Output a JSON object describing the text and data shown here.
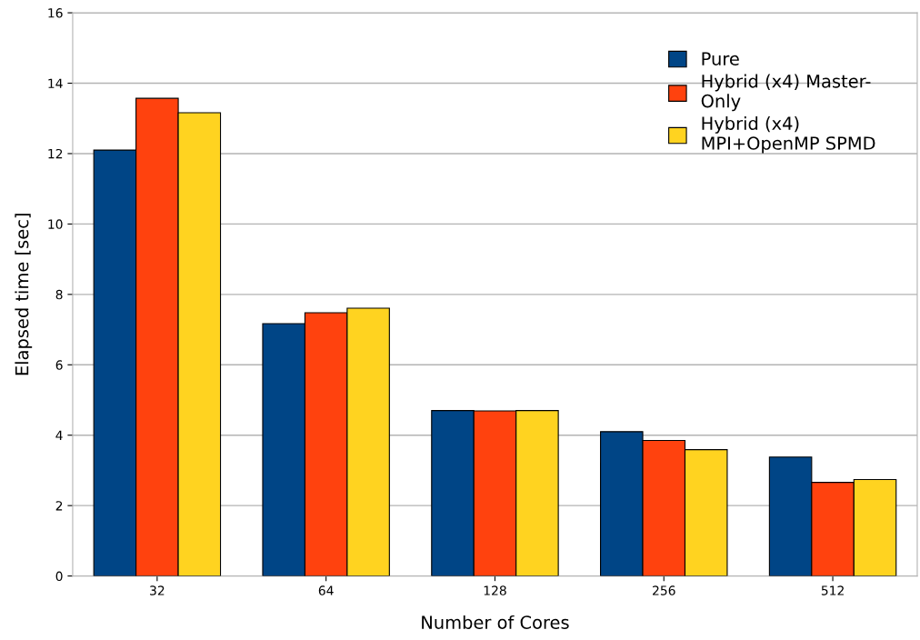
{
  "chart_data": {
    "type": "bar",
    "xlabel": "Number of Cores",
    "ylabel": "Elapsed time [sec]",
    "categories": [
      "32",
      "64",
      "128",
      "256",
      "512"
    ],
    "series": [
      {
        "name": "Pure",
        "color": "#004586",
        "values": [
          12.1,
          7.17,
          4.7,
          4.1,
          3.38
        ]
      },
      {
        "name": "Hybrid (x4) Master-\nOnly",
        "color": "#ff420e",
        "values": [
          13.57,
          7.48,
          4.69,
          3.85,
          2.66
        ]
      },
      {
        "name": "Hybrid (x4)\nMPI+OpenMP SPMD",
        "color": "#ffd320",
        "values": [
          13.16,
          7.61,
          4.7,
          3.59,
          2.74
        ]
      }
    ],
    "ylim": [
      0,
      16
    ],
    "yticks": [
      0,
      2,
      4,
      6,
      8,
      10,
      12,
      14,
      16
    ],
    "grid": "y",
    "legend": "top right"
  }
}
